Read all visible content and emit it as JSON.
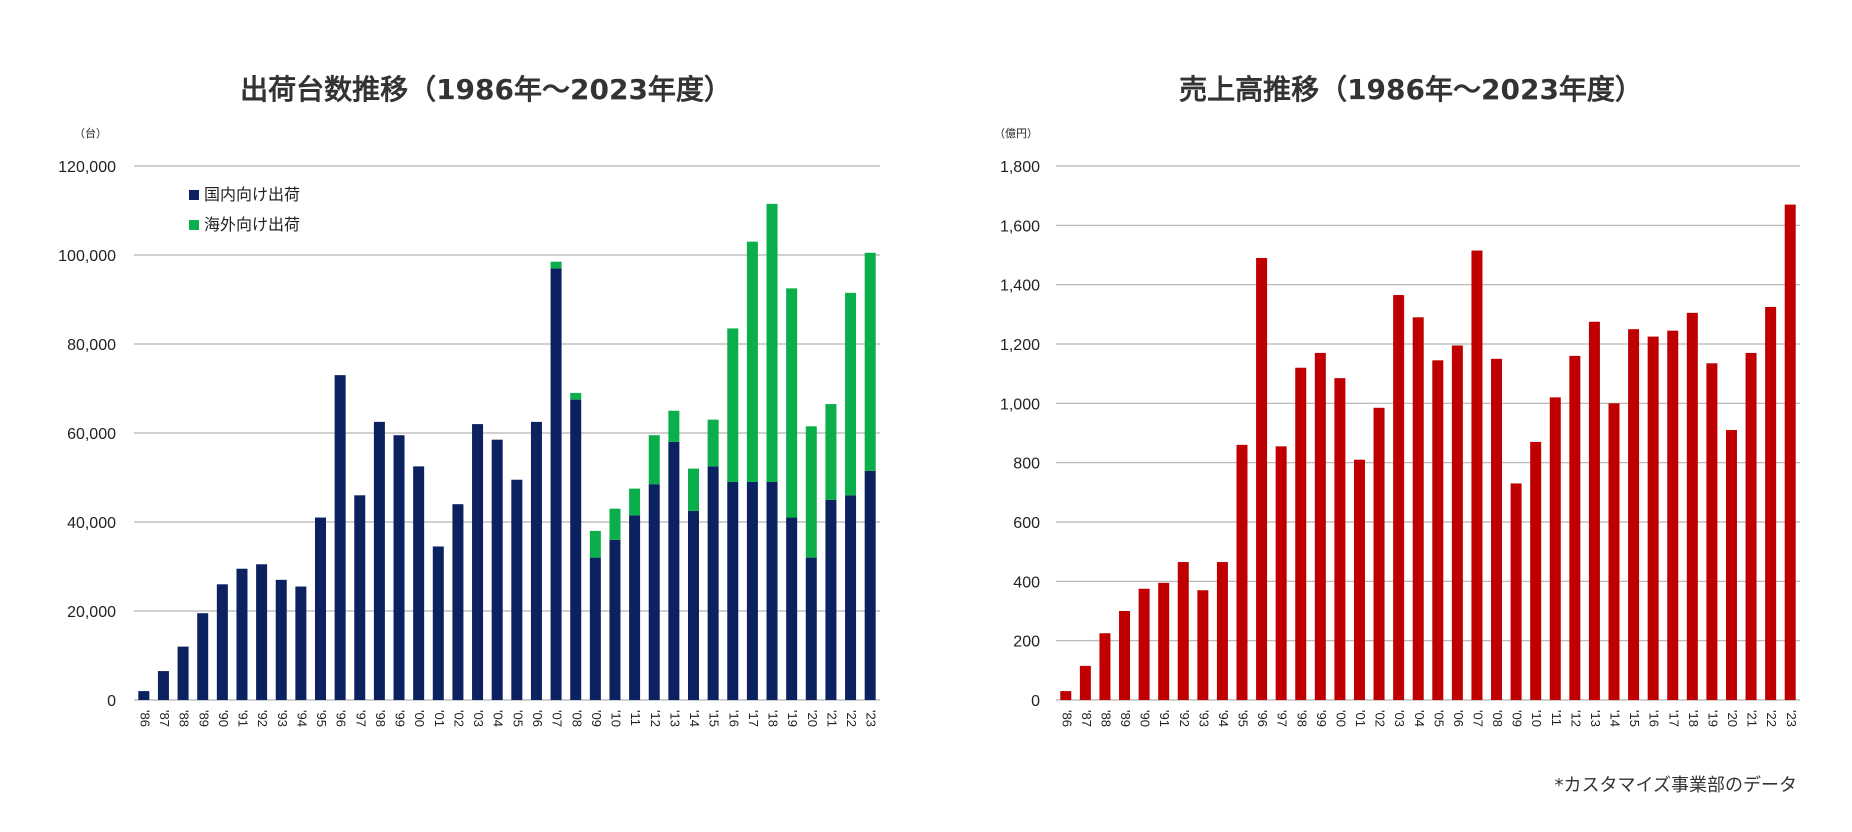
{
  "chart_data": [
    {
      "type": "bar",
      "stacked": true,
      "title": "出荷台数推移（1986年～2023年度）",
      "unit_label": "（台）",
      "ylim": [
        0,
        120000
      ],
      "yticks": [
        "0",
        "20,000",
        "40,000",
        "60,000",
        "80,000",
        "100,000",
        "120,000"
      ],
      "grid": true,
      "legend_position": "top-left",
      "categories": [
        "'86",
        "'87",
        "'88",
        "'89",
        "'90",
        "'91",
        "'92",
        "'93",
        "'94",
        "'95",
        "'96",
        "'97",
        "'98",
        "'99",
        "'00",
        "'01",
        "'02",
        "'03",
        "'04",
        "'05",
        "'06",
        "'07",
        "'08",
        "'09",
        "'10",
        "'11",
        "'12",
        "'13",
        "'14",
        "'15",
        "'16",
        "'17",
        "'18",
        "'19",
        "'20",
        "'21",
        "'22",
        "'23"
      ],
      "series": [
        {
          "name": "国内向け出荷",
          "color": "#0b2160",
          "values": [
            2000,
            6500,
            12000,
            19500,
            26000,
            29500,
            30500,
            27000,
            25500,
            41000,
            73000,
            46000,
            62500,
            59500,
            52500,
            34500,
            44000,
            62000,
            58500,
            49500,
            62500,
            97000,
            67500,
            32000,
            36000,
            41500,
            48500,
            58000,
            42500,
            52500,
            49000,
            49000,
            49000,
            41000,
            32000,
            45000,
            46000,
            51500
          ]
        },
        {
          "name": "海外向け出荷",
          "color": "#0aae4a",
          "values": [
            0,
            0,
            0,
            0,
            0,
            0,
            0,
            0,
            0,
            0,
            0,
            0,
            0,
            0,
            0,
            0,
            0,
            0,
            0,
            0,
            0,
            1500,
            1500,
            6000,
            7000,
            6000,
            11000,
            7000,
            9500,
            10500,
            34500,
            54000,
            62500,
            51500,
            29500,
            21500,
            45500,
            49000
          ]
        }
      ]
    },
    {
      "type": "bar",
      "title": "売上高推移（1986年～2023年度）",
      "unit_label": "（億円）",
      "ylim": [
        0,
        1800
      ],
      "yticks": [
        "0",
        "200",
        "400",
        "600",
        "800",
        "1,000",
        "1,200",
        "1,400",
        "1,600",
        "1,800"
      ],
      "grid": true,
      "categories": [
        "'86",
        "'87",
        "'88",
        "'89",
        "'90",
        "'91",
        "'92",
        "'93",
        "'94",
        "'95",
        "'96",
        "'97",
        "'98",
        "'99",
        "'00",
        "'01",
        "'02",
        "'03",
        "'04",
        "'05",
        "'06",
        "'07",
        "'08",
        "'09",
        "'10",
        "'11",
        "'12",
        "'13",
        "'14",
        "'15",
        "'16",
        "'17",
        "'18",
        "'19",
        "'20",
        "'21",
        "'22",
        "'23"
      ],
      "series": [
        {
          "color": "#c00000",
          "values": [
            30,
            115,
            225,
            300,
            375,
            395,
            465,
            370,
            465,
            860,
            1490,
            855,
            1120,
            1170,
            1085,
            810,
            985,
            1365,
            1290,
            1145,
            1195,
            1515,
            1150,
            730,
            870,
            1020,
            1160,
            1275,
            1000,
            1250,
            1225,
            1245,
            1305,
            1135,
            910,
            1170,
            1325,
            1670
          ]
        }
      ]
    }
  ],
  "footnote": "*カスタマイズ事業部のデータ"
}
